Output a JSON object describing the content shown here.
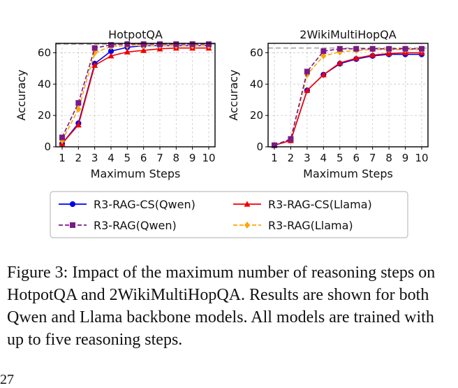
{
  "chart_data": [
    {
      "type": "line",
      "title": "HotpotQA",
      "xlabel": "Maximum Steps",
      "ylabel": "Accuracy",
      "x": [
        1,
        2,
        3,
        4,
        5,
        6,
        7,
        8,
        9,
        10
      ],
      "xlim": [
        1,
        10
      ],
      "ylim": [
        0,
        66
      ],
      "yticks": [
        0,
        20,
        40,
        60
      ],
      "grid": true,
      "reference_line": 65.5,
      "series": [
        {
          "name": "R3-RAG-CS(Qwen)",
          "values": [
            2,
            15,
            53,
            61,
            63.5,
            64.5,
            64.5,
            64.5,
            64.5,
            64.5
          ]
        },
        {
          "name": "R3-RAG-CS(Llama)",
          "values": [
            2,
            14,
            52,
            58,
            60.5,
            61.5,
            62.5,
            63,
            63,
            63
          ]
        },
        {
          "name": "R3-RAG(Qwen)",
          "values": [
            6,
            28,
            63,
            65,
            65.5,
            65.5,
            65.5,
            65.5,
            65.5,
            65.5
          ]
        },
        {
          "name": "R3-RAG(Llama)",
          "values": [
            4,
            24,
            60,
            64,
            64.5,
            64.5,
            64.5,
            64.5,
            64.5,
            64.5
          ]
        }
      ]
    },
    {
      "type": "line",
      "title": "2WikiMultiHopQA",
      "xlabel": "Maximum Steps",
      "ylabel": "Accuracy",
      "x": [
        1,
        2,
        3,
        4,
        5,
        6,
        7,
        8,
        9,
        10
      ],
      "xlim": [
        1,
        10
      ],
      "ylim": [
        0,
        66
      ],
      "yticks": [
        0,
        20,
        40,
        60
      ],
      "grid": true,
      "reference_line": 63,
      "series": [
        {
          "name": "R3-RAG-CS(Qwen)",
          "values": [
            1,
            4,
            36,
            46,
            53,
            56,
            58,
            59,
            59,
            59
          ]
        },
        {
          "name": "R3-RAG-CS(Llama)",
          "values": [
            1,
            4,
            36,
            46,
            53.5,
            56.5,
            58.5,
            59.5,
            60,
            60
          ]
        },
        {
          "name": "R3-RAG(Qwen)",
          "values": [
            1,
            5,
            48,
            61,
            62.5,
            62.5,
            62.5,
            62.5,
            62.5,
            62.5
          ]
        },
        {
          "name": "R3-RAG(Llama)",
          "values": [
            1,
            5,
            46,
            58,
            60.5,
            61.5,
            62,
            62,
            62,
            62
          ]
        }
      ]
    }
  ],
  "legend": {
    "items": [
      {
        "label": "R3-RAG-CS(Qwen)",
        "color": "#0000ee",
        "dash": "solid",
        "marker": "circle"
      },
      {
        "label": "R3-RAG-CS(Llama)",
        "color": "#ee0000",
        "dash": "solid",
        "marker": "triangle"
      },
      {
        "label": "R3-RAG(Qwen)",
        "color": "#7b1a84",
        "dash": "dashed",
        "marker": "square"
      },
      {
        "label": "R3-RAG(Llama)",
        "color": "#ffa500",
        "dash": "dashed",
        "marker": "diamond"
      }
    ]
  },
  "caption": "Figure 3: Impact of the maximum number of reasoning steps on HotpotQA and 2WikiMultiHopQA. Results are shown for both Qwen and Llama backbone models. All models are trained with up to five reasoning steps.",
  "page_number": "27"
}
